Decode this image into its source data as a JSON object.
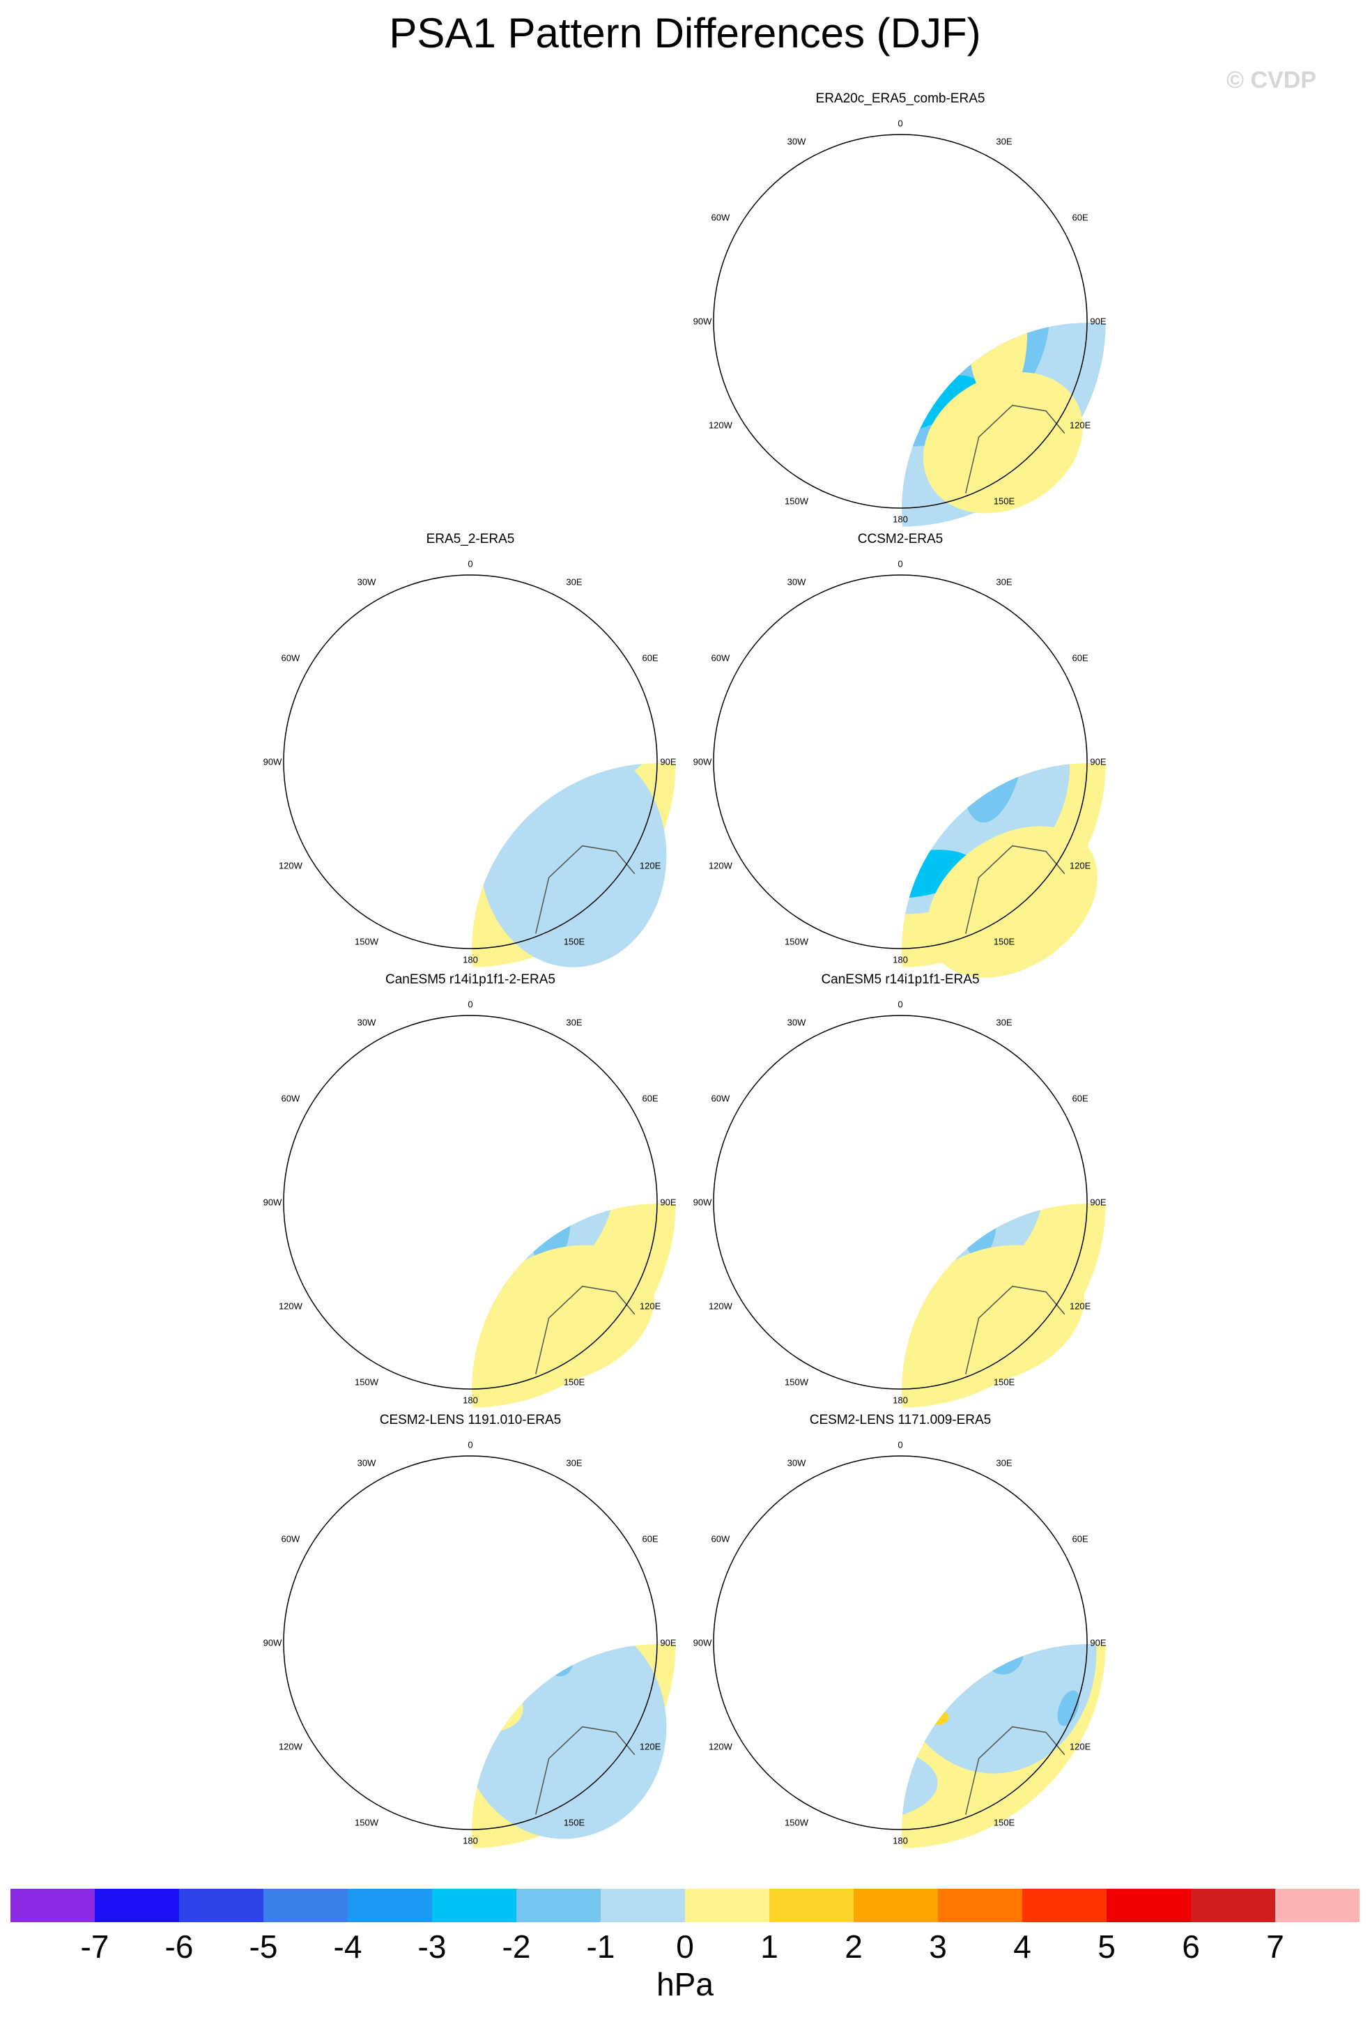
{
  "title": "PSA1 Pattern Differences (DJF)",
  "watermark": "© CVDP",
  "units": "hPa",
  "longitude_labels": [
    "0",
    "30E",
    "60E",
    "90E",
    "120E",
    "150E",
    "180",
    "150W",
    "120W",
    "90W",
    "60W",
    "30W"
  ],
  "panels": [
    {
      "id": "era20c",
      "title": "ERA20c_ERA5_comb-ERA5"
    },
    {
      "id": "era5_2",
      "title": "ERA5_2-ERA5"
    },
    {
      "id": "ccsm2",
      "title": "CCSM2-ERA5"
    },
    {
      "id": "canesm_a",
      "title": "CanESM5 r14i1p1f1-2-ERA5"
    },
    {
      "id": "canesm_b",
      "title": "CanESM5 r14i1p1f1-ERA5"
    },
    {
      "id": "cesm_a",
      "title": "CESM2-LENS 1191.010-ERA5"
    },
    {
      "id": "cesm_b",
      "title": "CESM2-LENS 1171.009-ERA5"
    }
  ],
  "colorbar": {
    "colors": [
      "#8a2be2",
      "#1e10f5",
      "#2f44e8",
      "#3a7ee8",
      "#1c99f4",
      "#00c3f5",
      "#75c6f0",
      "#b4dcf2",
      "#fdf48f",
      "#fdd52a",
      "#fea500",
      "#fe7700",
      "#fe3300",
      "#ee0000",
      "#d01e1e",
      "#fdb4b4"
    ],
    "labels": [
      "-7",
      "-6",
      "-5",
      "-4",
      "-3",
      "-2",
      "-1",
      "0",
      "1",
      "2",
      "3",
      "4",
      "5",
      "6",
      "7"
    ]
  }
}
